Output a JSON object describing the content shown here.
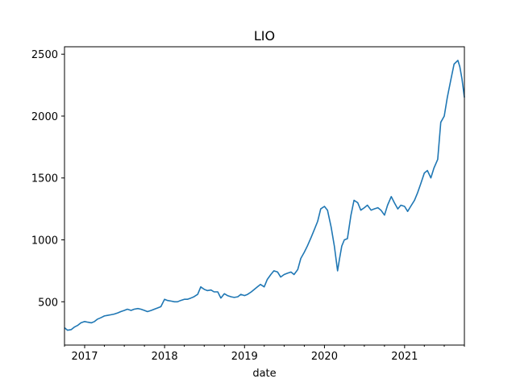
{
  "chart_data": {
    "type": "line",
    "title": "LIO",
    "xlabel": "date",
    "ylabel": "",
    "xlim": [
      "2016-10-01",
      "2021-10-01"
    ],
    "ylim": [
      150,
      2560
    ],
    "grid": false,
    "colors": {
      "line": "#1f77b4"
    },
    "x_ticks": [
      {
        "date": "2017-01-01",
        "label": "2017"
      },
      {
        "date": "2018-01-01",
        "label": "2018"
      },
      {
        "date": "2019-01-01",
        "label": "2019"
      },
      {
        "date": "2020-01-01",
        "label": "2020"
      },
      {
        "date": "2021-01-01",
        "label": "2021"
      }
    ],
    "y_ticks": [
      {
        "value": 500,
        "label": "500"
      },
      {
        "value": 1000,
        "label": "1000"
      },
      {
        "value": 1500,
        "label": "1500"
      },
      {
        "value": 2000,
        "label": "2000"
      },
      {
        "value": 2500,
        "label": "2500"
      }
    ],
    "series": [
      {
        "x": [
          "2016-10-01",
          "2016-10-15",
          "2016-11-01",
          "2016-11-15",
          "2016-12-01",
          "2016-12-15",
          "2017-01-01",
          "2017-01-15",
          "2017-02-01",
          "2017-02-15",
          "2017-03-01",
          "2017-03-15",
          "2017-04-01",
          "2017-04-15",
          "2017-05-01",
          "2017-05-15",
          "2017-06-01",
          "2017-06-15",
          "2017-07-01",
          "2017-07-15",
          "2017-08-01",
          "2017-08-15",
          "2017-09-01",
          "2017-09-15",
          "2017-10-01",
          "2017-10-15",
          "2017-11-01",
          "2017-11-15",
          "2017-12-01",
          "2017-12-15",
          "2018-01-01",
          "2018-01-15",
          "2018-02-01",
          "2018-02-15",
          "2018-03-01",
          "2018-03-15",
          "2018-04-01",
          "2018-04-15",
          "2018-05-01",
          "2018-05-15",
          "2018-06-01",
          "2018-06-15",
          "2018-07-01",
          "2018-07-15",
          "2018-08-01",
          "2018-08-15",
          "2018-09-01",
          "2018-09-15",
          "2018-10-01",
          "2018-10-15",
          "2018-11-01",
          "2018-11-15",
          "2018-12-01",
          "2018-12-15",
          "2019-01-01",
          "2019-01-15",
          "2019-02-01",
          "2019-02-15",
          "2019-03-01",
          "2019-03-15",
          "2019-04-01",
          "2019-04-15",
          "2019-05-01",
          "2019-05-15",
          "2019-06-01",
          "2019-06-15",
          "2019-07-01",
          "2019-07-15",
          "2019-08-01",
          "2019-08-15",
          "2019-09-01",
          "2019-09-15",
          "2019-10-01",
          "2019-10-15",
          "2019-11-01",
          "2019-11-15",
          "2019-12-01",
          "2019-12-15",
          "2020-01-01",
          "2020-01-15",
          "2020-02-01",
          "2020-02-15",
          "2020-03-01",
          "2020-03-10",
          "2020-03-20",
          "2020-04-01",
          "2020-04-15",
          "2020-05-01",
          "2020-05-15",
          "2020-06-01",
          "2020-06-15",
          "2020-07-01",
          "2020-07-15",
          "2020-08-01",
          "2020-08-15",
          "2020-09-01",
          "2020-09-15",
          "2020-10-01",
          "2020-10-15",
          "2020-11-01",
          "2020-11-15",
          "2020-12-01",
          "2020-12-15",
          "2021-01-01",
          "2021-01-15",
          "2021-02-01",
          "2021-02-15",
          "2021-03-01",
          "2021-03-15",
          "2021-04-01",
          "2021-04-15",
          "2021-05-01",
          "2021-05-15",
          "2021-06-01",
          "2021-06-15",
          "2021-07-01",
          "2021-07-15",
          "2021-08-01",
          "2021-08-15",
          "2021-09-01",
          "2021-09-10",
          "2021-09-20",
          "2021-10-01"
        ],
        "y": [
          290,
          270,
          275,
          295,
          310,
          330,
          340,
          335,
          330,
          340,
          360,
          370,
          385,
          390,
          395,
          400,
          410,
          420,
          430,
          440,
          430,
          440,
          445,
          440,
          430,
          420,
          430,
          440,
          450,
          460,
          520,
          510,
          505,
          500,
          500,
          510,
          520,
          520,
          530,
          540,
          560,
          620,
          600,
          590,
          595,
          580,
          580,
          530,
          565,
          550,
          540,
          535,
          540,
          560,
          550,
          560,
          580,
          600,
          620,
          640,
          620,
          680,
          720,
          750,
          740,
          700,
          720,
          730,
          740,
          720,
          760,
          850,
          900,
          950,
          1020,
          1080,
          1150,
          1250,
          1270,
          1240,
          1100,
          950,
          750,
          850,
          950,
          1000,
          1010,
          1200,
          1320,
          1300,
          1240,
          1260,
          1280,
          1240,
          1250,
          1260,
          1240,
          1200,
          1280,
          1350,
          1300,
          1250,
          1280,
          1270,
          1230,
          1280,
          1320,
          1380,
          1450,
          1540,
          1560,
          1500,
          1580,
          1650,
          1950,
          2000,
          2150,
          2300,
          2420,
          2450,
          2400,
          2300,
          2150
        ]
      }
    ]
  }
}
